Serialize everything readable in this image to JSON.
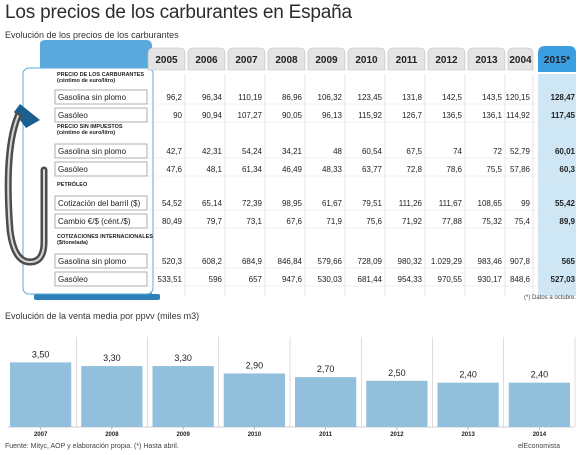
{
  "title": "Los precios de los carburantes en España",
  "subtitle": "Evolución de los precios de los carburantes",
  "bar_subtitle": "Evolución de la venta media por ppvv (miles m3)",
  "footer": "Fuente: Mityc, AOP y elaboración propia. (*) Hasta abril.",
  "brand": "elEconomista",
  "note": "(*) Datos a octubre.",
  "colors": {
    "accent_blue": "#5aa9dc",
    "bar_blue": "#92bfdb",
    "highlight_col": "#cfe6f5"
  },
  "chart_data": [
    {
      "type": "table",
      "columns": [
        "2005",
        "2006",
        "2007",
        "2008",
        "2009",
        "2010",
        "2011",
        "2012",
        "2013",
        "2004",
        "2015*"
      ],
      "sections": [
        {
          "title": "PRECIO DE LOS CARBURANTES",
          "unit": "(céntimo de euro/litro)",
          "rows": [
            {
              "label": "Gasolina sin plomo",
              "values": [
                "96,2",
                "96,34",
                "110,19",
                "86,96",
                "106,32",
                "123,45",
                "131,8",
                "142,5",
                "143,5",
                "120,15",
                "128,47"
              ]
            },
            {
              "label": "Gasóleo",
              "values": [
                "90",
                "90,94",
                "107,27",
                "90,05",
                "96,13",
                "115,92",
                "126,7",
                "136,5",
                "136,1",
                "114,92",
                "117,45"
              ]
            }
          ]
        },
        {
          "title": "PRECIO SIN IMPUESTOS",
          "unit": "(céntimo de euro/litro)",
          "rows": [
            {
              "label": "Gasolina sin plomo",
              "values": [
                "42,7",
                "42,31",
                "54,24",
                "34,21",
                "48",
                "60,54",
                "67,5",
                "74",
                "72",
                "52,79",
                "60,01"
              ]
            },
            {
              "label": "Gasóleo",
              "values": [
                "47,6",
                "48,1",
                "61,34",
                "46,49",
                "48,33",
                "63,77",
                "72,8",
                "78,6",
                "75,5",
                "57,86",
                "60,3"
              ]
            }
          ]
        },
        {
          "title": "PETRÓLEO",
          "unit": "",
          "rows": [
            {
              "label": "Cotización del barril ($)",
              "values": [
                "54,52",
                "65,14",
                "72,39",
                "98,95",
                "61,67",
                "79,51",
                "111,26",
                "111,67",
                "108,65",
                "99",
                "55,42"
              ]
            },
            {
              "label": "Cambio €/$ (cént./$)",
              "values": [
                "80,49",
                "79,7",
                "73,1",
                "67,6",
                "71,9",
                "75,6",
                "71,92",
                "77,88",
                "75,32",
                "75,4",
                "89,9"
              ]
            }
          ]
        },
        {
          "title": "COTIZACIONES INTERNACIONALES",
          "unit": "($/tonelada)",
          "rows": [
            {
              "label": "Gasolina sin plomo",
              "values": [
                "520,3",
                "608,2",
                "684,9",
                "846,84",
                "579,66",
                "728,09",
                "980,32",
                "1.029,29",
                "983,46",
                "907,8",
                "565"
              ]
            },
            {
              "label": "Gasóleo",
              "values": [
                "533,51",
                "596",
                "657",
                "947,6",
                "530,03",
                "681,44",
                "954,33",
                "970,55",
                "930,17",
                "848,6",
                "527,03"
              ]
            }
          ]
        }
      ]
    },
    {
      "type": "bar",
      "title": "Evolución de la venta media por ppvv (miles m3)",
      "categories": [
        "2007",
        "2008",
        "2009",
        "2010",
        "2011",
        "2012",
        "2013",
        "2014"
      ],
      "values": [
        3.5,
        3.3,
        3.3,
        2.9,
        2.7,
        2.5,
        2.4,
        2.4
      ],
      "labels": [
        "3,50",
        "3,30",
        "3,30",
        "2,90",
        "2,70",
        "2,50",
        "2,40",
        "2,40"
      ],
      "ylim": [
        0,
        4.2
      ],
      "grid": false
    }
  ]
}
